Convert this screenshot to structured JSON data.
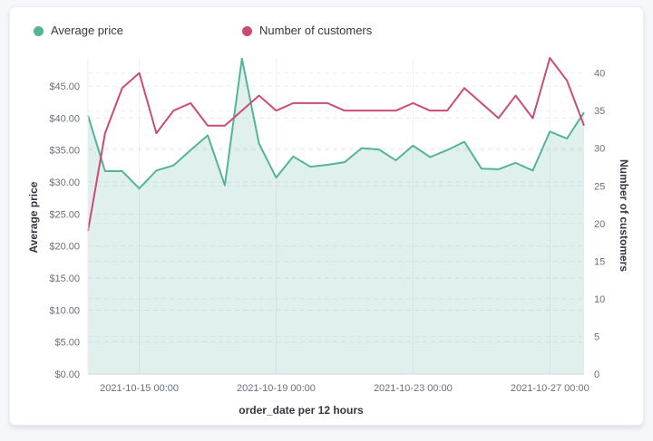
{
  "legend": {
    "position": "top",
    "items": [
      {
        "label": "Average price",
        "color": "#54b399"
      },
      {
        "label": "Number of customers",
        "color": "#cc4b76"
      }
    ]
  },
  "chart_data": {
    "type": "combo (area + line, dual y-axis)",
    "title": "",
    "xlabel": "order_date per 12 hours",
    "x_interval": "12 hours",
    "x": [
      "2021-10-13 12:00",
      "2021-10-14 00:00",
      "2021-10-14 12:00",
      "2021-10-15 00:00",
      "2021-10-15 12:00",
      "2021-10-16 00:00",
      "2021-10-16 12:00",
      "2021-10-17 00:00",
      "2021-10-17 12:00",
      "2021-10-18 00:00",
      "2021-10-18 12:00",
      "2021-10-19 00:00",
      "2021-10-19 12:00",
      "2021-10-20 00:00",
      "2021-10-20 12:00",
      "2021-10-21 00:00",
      "2021-10-21 12:00",
      "2021-10-22 00:00",
      "2021-10-22 12:00",
      "2021-10-23 00:00",
      "2021-10-23 12:00",
      "2021-10-24 00:00",
      "2021-10-24 12:00",
      "2021-10-25 00:00",
      "2021-10-25 12:00",
      "2021-10-26 00:00",
      "2021-10-26 12:00",
      "2021-10-27 00:00",
      "2021-10-27 12:00",
      "2021-10-28 00:00"
    ],
    "x_ticks": [
      {
        "index": 3,
        "label": "2021-10-15 00:00"
      },
      {
        "index": 11,
        "label": "2021-10-19 00:00"
      },
      {
        "index": 19,
        "label": "2021-10-23 00:00"
      },
      {
        "index": 27,
        "label": "2021-10-27 00:00"
      }
    ],
    "y_left": {
      "title": "Average price",
      "lim": [
        0,
        49.4
      ],
      "tick_values": [
        0,
        5,
        10,
        15,
        20,
        25,
        30,
        35,
        40,
        45
      ],
      "tick_labels": [
        "$0.00",
        "$5.00",
        "$10.00",
        "$15.00",
        "$20.00",
        "$25.00",
        "$30.00",
        "$35.00",
        "$40.00",
        "$45.00"
      ]
    },
    "y_right": {
      "title": "Number of customers",
      "lim": [
        0,
        42
      ],
      "tick_values": [
        0,
        5,
        10,
        15,
        20,
        25,
        30,
        35,
        40
      ],
      "tick_labels": [
        "0",
        "5",
        "10",
        "15",
        "20",
        "25",
        "30",
        "35",
        "40"
      ]
    },
    "grid": {
      "horizontal": "dashed",
      "vertical": "solid at date ticks"
    },
    "series": [
      {
        "name": "Average price",
        "type": "area",
        "axis": "left",
        "color": "#54b399",
        "fill": "rgba(84,179,153,0.18)",
        "values": [
          40.4,
          31.7,
          31.7,
          29.0,
          31.8,
          32.6,
          35.0,
          37.3,
          29.5,
          49.3,
          36.0,
          30.7,
          34.0,
          32.4,
          32.7,
          33.1,
          35.3,
          35.1,
          33.4,
          35.7,
          33.9,
          35.0,
          36.3,
          32.1,
          32.0,
          33.0,
          31.8,
          37.9,
          36.8,
          40.9
        ]
      },
      {
        "name": "Number of customers",
        "type": "line",
        "axis": "right",
        "color": "#cc4b76",
        "values": [
          19,
          32,
          38,
          40,
          32,
          35,
          36,
          33,
          33,
          35,
          37,
          35,
          36,
          36,
          36,
          35,
          35,
          35,
          35,
          36,
          35,
          35,
          38,
          36,
          34,
          37,
          34,
          42,
          39,
          33
        ]
      }
    ]
  }
}
